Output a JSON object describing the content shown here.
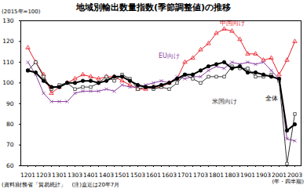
{
  "chart_data": {
    "type": "line",
    "title": "地域別輸出数量指数(季節調整値)の推移",
    "subtitle": "(2015年=100)",
    "x_label": "(年・四半期)",
    "source": "(資料)財務省「貿易統計」",
    "note": "(注)直近は20年7月",
    "categories": [
      "1201",
      null,
      "1203",
      null,
      "1301",
      null,
      "1303",
      null,
      "1401",
      null,
      "1403",
      null,
      "1501",
      null,
      "1503",
      null,
      "1601",
      null,
      "1603",
      null,
      "1701",
      null,
      "1703",
      null,
      "1801",
      null,
      "1803",
      null,
      "1901",
      null,
      "1903",
      null,
      "2001",
      null,
      "2003"
    ],
    "ylim": [
      60,
      130
    ],
    "yticks": [
      60,
      70,
      80,
      90,
      100,
      110,
      120,
      130
    ],
    "grid": false,
    "series": [
      {
        "name": "中国向け",
        "color": "#e8202a",
        "marker": "triangle",
        "values": [
          117,
          110,
          104,
          95,
          98,
          100,
          102,
          104,
          103,
          102,
          103,
          103,
          101,
          99,
          97,
          97,
          98,
          98,
          100,
          102,
          110,
          112,
          116,
          119,
          124,
          126,
          125,
          121,
          114,
          114,
          111,
          112,
          104,
          111,
          120
        ]
      },
      {
        "name": "EU向け",
        "color": "#8a3d9e",
        "marker": "times",
        "values": [
          110,
          104,
          95,
          91,
          91,
          91,
          95,
          96,
          96,
          96,
          97,
          96,
          99,
          98,
          98,
          99,
          100,
          101,
          100,
          103,
          102,
          103,
          103,
          106,
          108,
          107,
          110,
          109,
          110,
          109,
          110,
          106,
          102,
          73,
          72
        ]
      },
      {
        "name": "米国向け",
        "color": "#333333",
        "marker": "square",
        "values": [
          106,
          110,
          103,
          97,
          99,
          100,
          97,
          98,
          98,
          100,
          103,
          101,
          104,
          102,
          97,
          98,
          97,
          98,
          97,
          100,
          104,
          102,
          100,
          103,
          103,
          103,
          108,
          107,
          107,
          103,
          103,
          104,
          101,
          61,
          85
        ]
      },
      {
        "name": "全体",
        "color": "#000000",
        "marker": "circle",
        "values": [
          106,
          105,
          101,
          98,
          98,
          100,
          100,
          101,
          101,
          100,
          101,
          103,
          103,
          101,
          99,
          98,
          98,
          99,
          100,
          102,
          104,
          104,
          106,
          108,
          109,
          110,
          107,
          108,
          105,
          105,
          104,
          103,
          102,
          77,
          80
        ]
      }
    ]
  }
}
